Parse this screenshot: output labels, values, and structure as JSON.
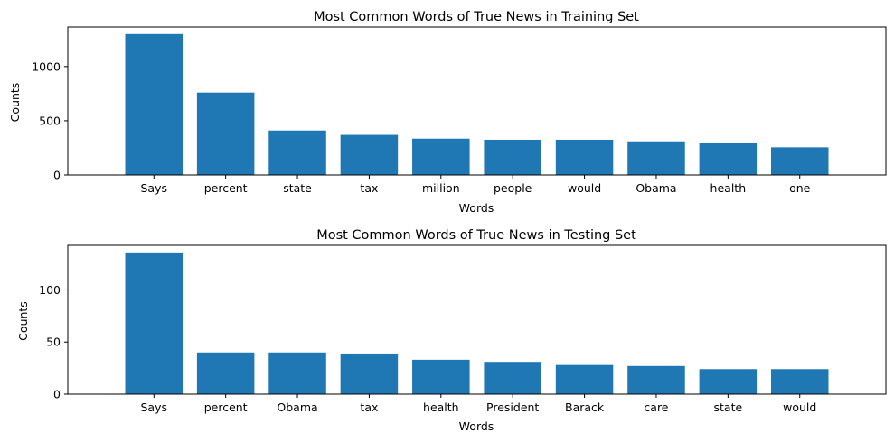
{
  "chart_data": [
    {
      "type": "bar",
      "title": "Most Common Words of True News in Training Set",
      "xlabel": "Words",
      "ylabel": "Counts",
      "categories": [
        "Says",
        "percent",
        "state",
        "tax",
        "million",
        "people",
        "would",
        "Obama",
        "health",
        "one"
      ],
      "values": [
        1300,
        760,
        410,
        370,
        335,
        325,
        325,
        310,
        300,
        255
      ],
      "ylim": [
        0,
        1365
      ],
      "yticks": [
        0,
        500,
        1000
      ],
      "grid": false,
      "color": "#1f77b4"
    },
    {
      "type": "bar",
      "title": "Most Common Words of True News in Testing Set",
      "xlabel": "Words",
      "ylabel": "Counts",
      "categories": [
        "Says",
        "percent",
        "Obama",
        "tax",
        "health",
        "President",
        "Barack",
        "care",
        "state",
        "would"
      ],
      "values": [
        136,
        40,
        40,
        39,
        33,
        31,
        28,
        27,
        24,
        24
      ],
      "ylim": [
        0,
        142.8
      ],
      "yticks": [
        0,
        50,
        100
      ],
      "grid": false,
      "color": "#1f77b4"
    }
  ]
}
